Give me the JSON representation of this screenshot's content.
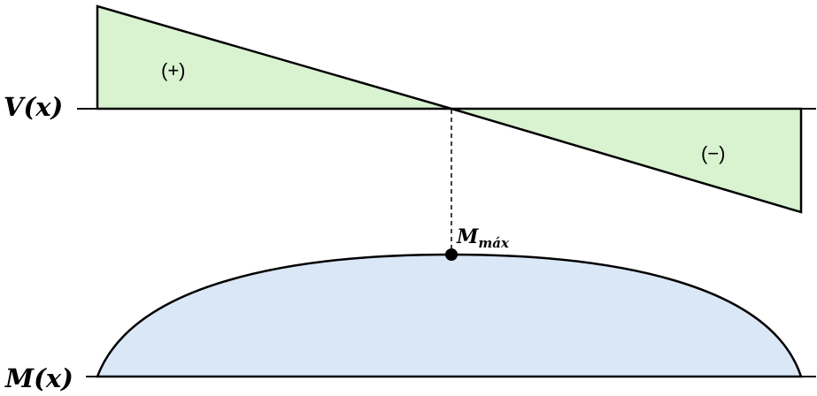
{
  "shear": {
    "label": "V(x)",
    "positive_sign": "(+)",
    "negative_sign": "(−)",
    "fill_color": "#d9f2d0",
    "stroke_color": "#000000"
  },
  "moment": {
    "label": "M(x)",
    "max_label_main": "M",
    "max_label_sub": "máx",
    "fill_color": "#dae7f6",
    "stroke_color": "#000000"
  }
}
